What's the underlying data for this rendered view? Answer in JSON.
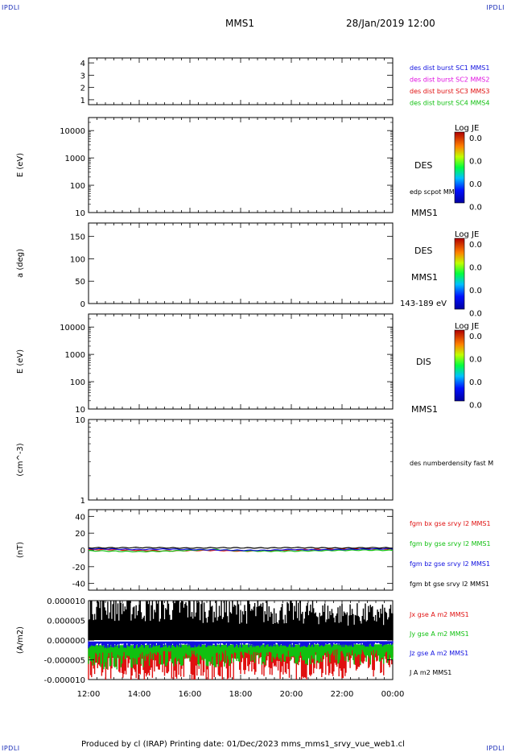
{
  "corner_labels": {
    "top_left": "IPDLI",
    "top_right": "IPDLI",
    "bottom_left": "IPDLI",
    "bottom_right": "IPDLI"
  },
  "header": {
    "title": "MMS1",
    "date": "28/Jan/2019 12:00"
  },
  "footer": {
    "text": "Produced by cl (IRAP)   Printing date: 01/Dec/2023   mms_mms1_srvy_vue_web1.cl"
  },
  "chart_data": [
    {
      "type": "line",
      "id": "panel-spacecraft-flags",
      "ylabel": "",
      "yticks": [
        "4",
        "3",
        "2",
        "1"
      ],
      "ylim": [
        0.6,
        4.4
      ],
      "series": [
        {
          "name": "des dist burst SC1 MMS1",
          "color": "#1010e0",
          "values": []
        },
        {
          "name": "des dist burst SC2 MMS2",
          "color": "#e010e0",
          "values": []
        },
        {
          "name": "des dist burst SC3 MMS3",
          "color": "#e01010",
          "values": []
        },
        {
          "name": "des dist burst SC4 MMS4",
          "color": "#10c010",
          "values": []
        }
      ]
    },
    {
      "type": "heatmap",
      "id": "panel-des-energy",
      "ylabel": "E (eV)",
      "yscale": "log",
      "ylim": [
        10,
        30000
      ],
      "yticks": [
        "10000",
        "1000",
        "100",
        "10"
      ],
      "labels": [
        "DES",
        "MMS1"
      ],
      "overlay": "edp scpot MMS1",
      "colorbar": {
        "title": "Log JE",
        "ticks": [
          "0.0",
          "0.0",
          "0.0",
          "0.0"
        ]
      }
    },
    {
      "type": "heatmap",
      "id": "panel-des-pitch",
      "ylabel": "a (deg)",
      "ylim": [
        0,
        180
      ],
      "yticks": [
        "150",
        "100",
        "50",
        "0"
      ],
      "labels": [
        "DES",
        "MMS1",
        "143-189 eV"
      ],
      "colorbar": {
        "title": "Log JE",
        "ticks": [
          "0.0",
          "0.0",
          "0.0",
          "0.0"
        ]
      }
    },
    {
      "type": "heatmap",
      "id": "panel-dis-energy",
      "ylabel": "E (eV)",
      "yscale": "log",
      "ylim": [
        10,
        30000
      ],
      "yticks": [
        "10000",
        "1000",
        "100",
        "10"
      ],
      "labels": [
        "DIS",
        "MMS1"
      ],
      "colorbar": {
        "title": "Log JE",
        "ticks": [
          "0.0",
          "0.0",
          "0.0",
          "0.0"
        ]
      }
    },
    {
      "type": "line",
      "id": "panel-density",
      "ylabel": "(cm^-3)",
      "yscale": "log",
      "ylim": [
        1,
        10
      ],
      "yticks": [
        "10",
        "1"
      ],
      "series": [
        {
          "name": "des numberdensity fast M",
          "color": "#000000",
          "values": []
        }
      ]
    },
    {
      "type": "line",
      "id": "panel-magnetic-field",
      "ylabel": "(nT)",
      "ylim": [
        -48,
        48
      ],
      "yticks": [
        "40",
        "20",
        "0",
        "-20",
        "-40"
      ],
      "x": [
        0,
        1,
        2,
        3,
        4,
        5,
        6,
        7,
        8,
        9,
        10,
        11,
        12
      ],
      "series": [
        {
          "name": "fgm bx gse srvy l2 MMS1",
          "color": "#e01010",
          "values": [
            0.5,
            0.3,
            -0.5,
            -1.2,
            -0.8,
            -0.5,
            -1.5,
            -1,
            0,
            0.5,
            1,
            1.5,
            1
          ]
        },
        {
          "name": "fgm by gse srvy l2 MMS1",
          "color": "#10c010",
          "values": [
            -1,
            -1.5,
            -2,
            -1.5,
            -0.5,
            0.5,
            -1,
            -1.5,
            -1.5,
            -1,
            -0.5,
            -0.2,
            -0.5
          ]
        },
        {
          "name": "fgm bz gse srvy l2 MMS1",
          "color": "#1010e0",
          "values": [
            1.5,
            1,
            0.5,
            1,
            0.5,
            0,
            -0.5,
            -0.5,
            0.5,
            0,
            0.5,
            1,
            1.5
          ]
        },
        {
          "name": "fgm bt gse srvy l2 MMS1",
          "color": "#000000",
          "values": [
            2.5,
            2.5,
            2.8,
            2.5,
            2.2,
            2.6,
            2.5,
            2.3,
            2.8,
            2.5,
            2.2,
            2.6,
            2.5
          ]
        }
      ]
    },
    {
      "type": "line",
      "id": "panel-current-density",
      "ylabel": "(A/m2)",
      "ylim": [
        -1e-05,
        1e-05
      ],
      "yticks": [
        "0.000010",
        "0.000005",
        "0.000000",
        "-0.000005",
        "-0.000010"
      ],
      "series": [
        {
          "name": "Jx gse A m2 MMS1",
          "color": "#e01010",
          "values": [
            -7.5e-06,
            -7.2e-06,
            -7.8e-06,
            -7e-06,
            -7.4e-06,
            -7e-06,
            -6.8e-06,
            -7e-06,
            -6.6e-06,
            -6.8e-06,
            -6.5e-06
          ]
        },
        {
          "name": "Jy gse A m2 MMS1",
          "color": "#10c010",
          "values": [
            -5e-06,
            -5.2e-06,
            -4.8e-06,
            -4.6e-06,
            -4.8e-06,
            -4.5e-06,
            -4.4e-06,
            -4.6e-06,
            -4.2e-06,
            -4.4e-06,
            -4.2e-06
          ]
        },
        {
          "name": "Jz gse A m2 MMS1",
          "color": "#1010e0",
          "values": [
            -1.5e-06,
            -1.4e-06,
            -1.5e-06,
            -1.3e-06,
            -1.4e-06,
            -1.3e-06,
            -1.2e-06,
            -1.3e-06,
            -1.2e-06,
            -1.2e-06,
            -1.1e-06
          ]
        },
        {
          "name": "J A m2 MMS1",
          "color": "#000000",
          "values": [
            9e-06,
            8.5e-06,
            8e-06,
            8.2e-06,
            7.8e-06,
            7.5e-06,
            7e-06,
            7.2e-06,
            6.8e-06,
            6.5e-06,
            6.2e-06
          ]
        }
      ],
      "xticks": [
        "12:00",
        "14:00",
        "16:00",
        "18:00",
        "20:00",
        "22:00",
        "00:00"
      ]
    }
  ]
}
